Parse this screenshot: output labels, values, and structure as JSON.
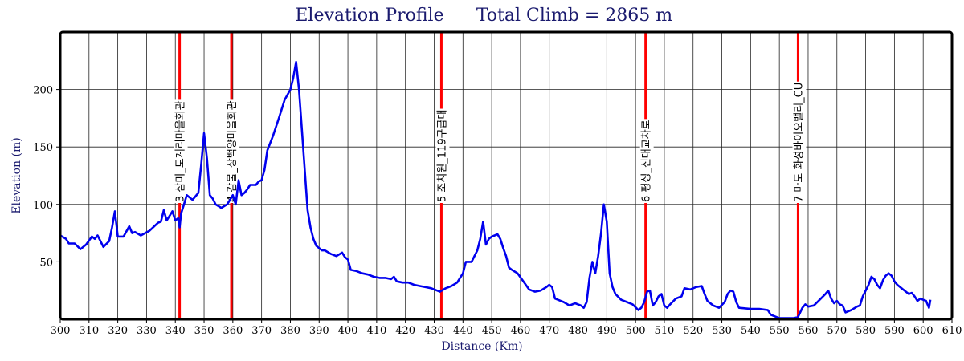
{
  "chart_data": {
    "type": "line",
    "title": "Elevation Profile",
    "subtitle": "Total Climb = 2865 m",
    "xlabel": "Distance (Km)",
    "ylabel": "Elevation (m)",
    "xlim": [
      300,
      610
    ],
    "ylim": [
      0,
      250
    ],
    "xticks": [
      300,
      310,
      320,
      330,
      340,
      350,
      360,
      370,
      380,
      390,
      400,
      410,
      420,
      430,
      440,
      450,
      460,
      470,
      480,
      490,
      500,
      510,
      520,
      530,
      540,
      550,
      560,
      570,
      580,
      590,
      600,
      610
    ],
    "xtick_labels": [
      "300",
      "310",
      "320",
      "330",
      "340",
      "350",
      "360",
      "370",
      "380",
      "390",
      "400",
      "410",
      "420",
      "430",
      "440",
      "450",
      "460",
      "470",
      "480",
      "490",
      "500",
      "510",
      "520",
      "530",
      "540",
      "550",
      "560",
      "570",
      "580",
      "590",
      "600",
      "610"
    ],
    "yticks": [
      50,
      100,
      150,
      200
    ],
    "ytick_labels": [
      "50",
      "100",
      "150",
      "200"
    ],
    "grid": true,
    "colors": {
      "line": "#0000ee",
      "marker": "#ff0000",
      "axis_text": "#1a1a6e",
      "grid": "#222222"
    },
    "markers": [
      {
        "x": 341.5,
        "label": "3 삼미_토계리마을회관"
      },
      {
        "x": 359.5,
        "label": "4 감물_상백양마을회관"
      },
      {
        "x": 432.5,
        "label": "5 조치원_119구급대"
      },
      {
        "x": 503.5,
        "label": "6 평성_신대교차로"
      },
      {
        "x": 556.5,
        "label": "7 마도 화성바이오밸리_CU"
      }
    ],
    "series": [
      {
        "values": [
          [
            300,
            73
          ],
          [
            302,
            70
          ],
          [
            303,
            66
          ],
          [
            305,
            66
          ],
          [
            307,
            61
          ],
          [
            309,
            65
          ],
          [
            311,
            72
          ],
          [
            312,
            70
          ],
          [
            313,
            73
          ],
          [
            315,
            63
          ],
          [
            317,
            68
          ],
          [
            318,
            80
          ],
          [
            319,
            94
          ],
          [
            320,
            72
          ],
          [
            322,
            72
          ],
          [
            324,
            81
          ],
          [
            325,
            75
          ],
          [
            326,
            76
          ],
          [
            328,
            73
          ],
          [
            331,
            77
          ],
          [
            334,
            84
          ],
          [
            335,
            85
          ],
          [
            336,
            95
          ],
          [
            337,
            86
          ],
          [
            339,
            94
          ],
          [
            340,
            86
          ],
          [
            341,
            88
          ],
          [
            341.5,
            80
          ],
          [
            342,
            92
          ],
          [
            343,
            100
          ],
          [
            344,
            108
          ],
          [
            346,
            104
          ],
          [
            348,
            110
          ],
          [
            349,
            135
          ],
          [
            350,
            162
          ],
          [
            351,
            140
          ],
          [
            352,
            108
          ],
          [
            353,
            105
          ],
          [
            354,
            100
          ],
          [
            356,
            97
          ],
          [
            358,
            100
          ],
          [
            359,
            104
          ],
          [
            360,
            108
          ],
          [
            361,
            100
          ],
          [
            362,
            121
          ],
          [
            363,
            108
          ],
          [
            364,
            110
          ],
          [
            365,
            113
          ],
          [
            366,
            117
          ],
          [
            368,
            117
          ],
          [
            369,
            120
          ],
          [
            370,
            121
          ],
          [
            371,
            130
          ],
          [
            372,
            147
          ],
          [
            374,
            160
          ],
          [
            376,
            175
          ],
          [
            378,
            191
          ],
          [
            380,
            200
          ],
          [
            381,
            210
          ],
          [
            382,
            224
          ],
          [
            383,
            200
          ],
          [
            384,
            165
          ],
          [
            386,
            95
          ],
          [
            387,
            80
          ],
          [
            388,
            70
          ],
          [
            389,
            64
          ],
          [
            391,
            60
          ],
          [
            392,
            60
          ],
          [
            394,
            57
          ],
          [
            396,
            55
          ],
          [
            398,
            58
          ],
          [
            399,
            54
          ],
          [
            400,
            52
          ],
          [
            401,
            43
          ],
          [
            403,
            42
          ],
          [
            405,
            40
          ],
          [
            407,
            39
          ],
          [
            409,
            37
          ],
          [
            411,
            36
          ],
          [
            413,
            36
          ],
          [
            415,
            35
          ],
          [
            416,
            37
          ],
          [
            417,
            33
          ],
          [
            419,
            32
          ],
          [
            421,
            32
          ],
          [
            423,
            30
          ],
          [
            425,
            29
          ],
          [
            427,
            28
          ],
          [
            429,
            27
          ],
          [
            431,
            25
          ],
          [
            432,
            24
          ],
          [
            434,
            27
          ],
          [
            436,
            29
          ],
          [
            438,
            32
          ],
          [
            440,
            40
          ],
          [
            441,
            50
          ],
          [
            443,
            50
          ],
          [
            445,
            60
          ],
          [
            446,
            70
          ],
          [
            447,
            85
          ],
          [
            448,
            65
          ],
          [
            449,
            70
          ],
          [
            450,
            72
          ],
          [
            451,
            73
          ],
          [
            452,
            74
          ],
          [
            453,
            70
          ],
          [
            454,
            62
          ],
          [
            455,
            55
          ],
          [
            456,
            45
          ],
          [
            457,
            43
          ],
          [
            459,
            40
          ],
          [
            461,
            33
          ],
          [
            463,
            26
          ],
          [
            465,
            24
          ],
          [
            467,
            25
          ],
          [
            469,
            28
          ],
          [
            470,
            30
          ],
          [
            471,
            28
          ],
          [
            472,
            18
          ],
          [
            474,
            16
          ],
          [
            475,
            15
          ],
          [
            477,
            12
          ],
          [
            479,
            14
          ],
          [
            481,
            12
          ],
          [
            482,
            10
          ],
          [
            483,
            15
          ],
          [
            484,
            36
          ],
          [
            485,
            50
          ],
          [
            486,
            40
          ],
          [
            487,
            55
          ],
          [
            488,
            75
          ],
          [
            489,
            100
          ],
          [
            490,
            85
          ],
          [
            491,
            40
          ],
          [
            492,
            28
          ],
          [
            493,
            22
          ],
          [
            495,
            17
          ],
          [
            497,
            15
          ],
          [
            499,
            13
          ],
          [
            501,
            8
          ],
          [
            502,
            10
          ],
          [
            503,
            15
          ],
          [
            504,
            24
          ],
          [
            505,
            25
          ],
          [
            506,
            12
          ],
          [
            507,
            15
          ],
          [
            508,
            20
          ],
          [
            509,
            22
          ],
          [
            510,
            12
          ],
          [
            511,
            10
          ],
          [
            512,
            13
          ],
          [
            514,
            18
          ],
          [
            516,
            20
          ],
          [
            517,
            27
          ],
          [
            519,
            26
          ],
          [
            521,
            28
          ],
          [
            523,
            29
          ],
          [
            524,
            22
          ],
          [
            525,
            16
          ],
          [
            527,
            12
          ],
          [
            529,
            10
          ],
          [
            531,
            15
          ],
          [
            532,
            22
          ],
          [
            533,
            25
          ],
          [
            534,
            24
          ],
          [
            535,
            15
          ],
          [
            536,
            10
          ],
          [
            540,
            9
          ],
          [
            543,
            9
          ],
          [
            546,
            8
          ],
          [
            547,
            4
          ],
          [
            550,
            1
          ],
          [
            553,
            1
          ],
          [
            555,
            1
          ],
          [
            556.5,
            2
          ],
          [
            558,
            10
          ],
          [
            559,
            13
          ],
          [
            560,
            11
          ],
          [
            562,
            12
          ],
          [
            564,
            17
          ],
          [
            566,
            22
          ],
          [
            567,
            25
          ],
          [
            568,
            18
          ],
          [
            569,
            14
          ],
          [
            570,
            16
          ],
          [
            571,
            13
          ],
          [
            572,
            12
          ],
          [
            573,
            6
          ],
          [
            575,
            8
          ],
          [
            577,
            11
          ],
          [
            578,
            12
          ],
          [
            579,
            20
          ],
          [
            580,
            25
          ],
          [
            581,
            30
          ],
          [
            582,
            37
          ],
          [
            583,
            35
          ],
          [
            584,
            30
          ],
          [
            585,
            27
          ],
          [
            586,
            34
          ],
          [
            587,
            38
          ],
          [
            588,
            40
          ],
          [
            589,
            38
          ],
          [
            590,
            33
          ],
          [
            591,
            30
          ],
          [
            592,
            28
          ],
          [
            593,
            26
          ],
          [
            594,
            24
          ],
          [
            595,
            22
          ],
          [
            596,
            23
          ],
          [
            597,
            20
          ],
          [
            598,
            16
          ],
          [
            599,
            18
          ],
          [
            600,
            17
          ],
          [
            601,
            16
          ],
          [
            602,
            10
          ],
          [
            602.5,
            17
          ]
        ]
      }
    ]
  }
}
